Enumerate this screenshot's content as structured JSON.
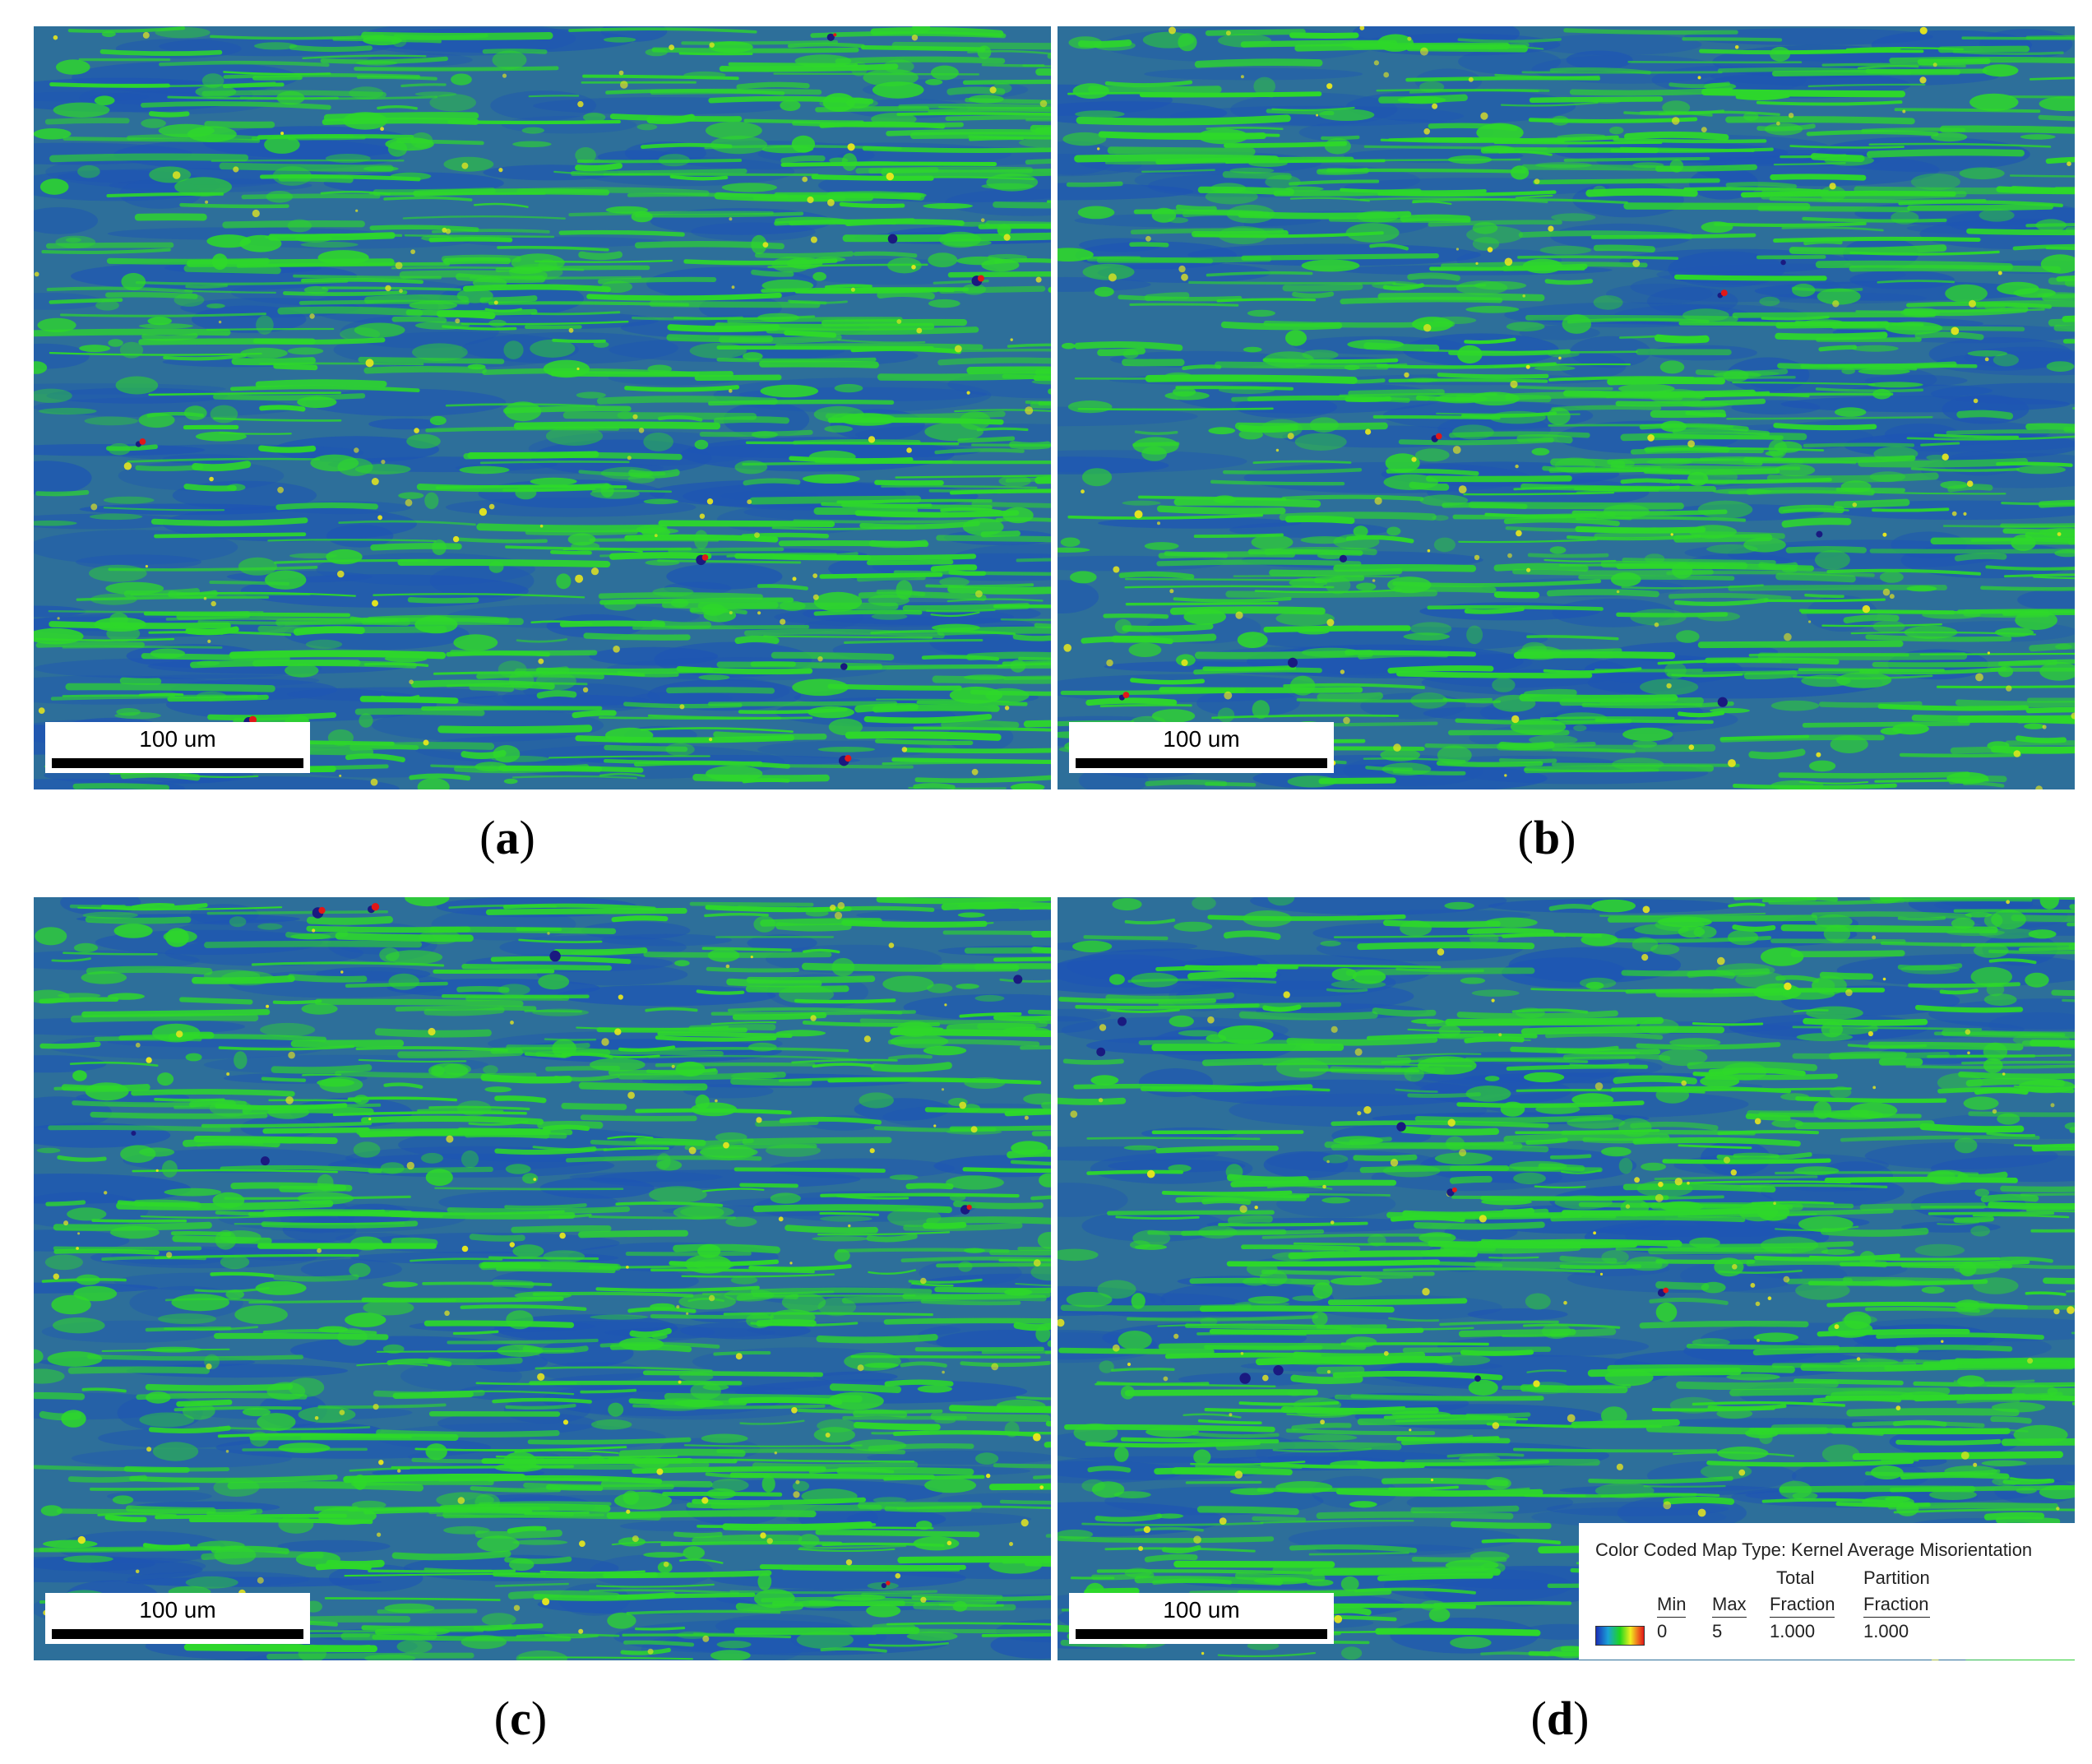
{
  "panels": [
    {
      "id": "a",
      "caption_letter": "a",
      "scalebar_label": "100 um",
      "seed": 11
    },
    {
      "id": "b",
      "caption_letter": "b",
      "scalebar_label": "100 um",
      "seed": 23
    },
    {
      "id": "c",
      "caption_letter": "c",
      "scalebar_label": "100 um",
      "seed": 37
    },
    {
      "id": "d",
      "caption_letter": "d",
      "scalebar_label": "100 um",
      "seed": 53
    }
  ],
  "caption_open": "(",
  "caption_close": ")",
  "legend": {
    "title": "Color Coded Map Type: Kernel Average Misorientation",
    "min_header": "Min",
    "min_value": "0",
    "max_header": "Max",
    "max_value": "5",
    "total_header_line1": "Total",
    "total_header_line2": "Fraction",
    "total_value": "1.000",
    "partition_header_line1": "Partition",
    "partition_header_line2": "Fraction",
    "partition_value": "1.000"
  },
  "colors": {
    "background": "#2d6f9a",
    "blue": "#1e55b4",
    "green": "#2ed82a",
    "yellow": "#e6e61e",
    "red": "#e01818",
    "navy": "#1a1a80"
  }
}
